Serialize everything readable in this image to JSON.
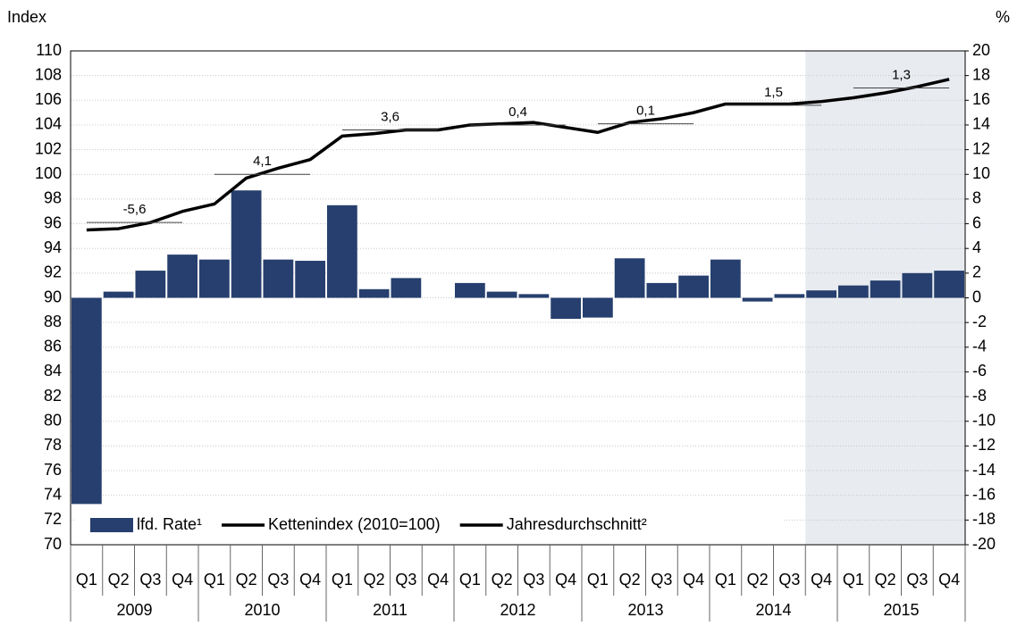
{
  "chart_data": {
    "type": "bar_line",
    "y_axis_label": "Index",
    "y2_axis_label": "%",
    "categories": [
      "Q1",
      "Q2",
      "Q3",
      "Q4",
      "Q1",
      "Q2",
      "Q3",
      "Q4",
      "Q1",
      "Q2",
      "Q3",
      "Q4",
      "Q1",
      "Q2",
      "Q3",
      "Q4",
      "Q1",
      "Q2",
      "Q3",
      "Q4",
      "Q1",
      "Q2",
      "Q3",
      "Q4",
      "Q1",
      "Q2",
      "Q3",
      "Q4"
    ],
    "years": [
      "2009",
      "2010",
      "2011",
      "2012",
      "2013",
      "2014",
      "2015"
    ],
    "ylim": [
      70,
      110
    ],
    "yticks": [
      70,
      72,
      74,
      76,
      78,
      80,
      82,
      84,
      86,
      88,
      90,
      92,
      94,
      96,
      98,
      100,
      102,
      104,
      106,
      108,
      110
    ],
    "y2lim": [
      -20,
      20
    ],
    "y2ticks": [
      -20,
      -18,
      -16,
      -14,
      -12,
      -10,
      -8,
      -6,
      -4,
      -2,
      0,
      2,
      4,
      6,
      8,
      10,
      12,
      14,
      16,
      18,
      20
    ],
    "grid": true,
    "shade_start": 23,
    "series": [
      {
        "name": "lfd. Rate¹",
        "color": "#263f6e",
        "axis": "y2",
        "kind": "bar",
        "values": [
          -16.7,
          0.5,
          2.2,
          3.5,
          3.1,
          8.7,
          3.1,
          3.0,
          7.5,
          0.7,
          1.6,
          0,
          1.2,
          0.5,
          0.3,
          -1.7,
          -1.6,
          3.2,
          1.2,
          1.8,
          3.1,
          -0.3,
          0.3,
          0.6,
          1.0,
          1.4,
          2.0,
          2.2
        ]
      },
      {
        "name": "Kettenindex (2010=100)",
        "color": "#000000",
        "kind": "line",
        "values": [
          95.5,
          95.6,
          96.1,
          97.0,
          97.6,
          99.7,
          100.5,
          101.2,
          103.1,
          103.3,
          103.6,
          103.6,
          104.0,
          104.1,
          104.2,
          103.8,
          103.4,
          104.2,
          104.5,
          105.0,
          105.7,
          105.7,
          105.7,
          105.9,
          106.2,
          106.6,
          107.1,
          107.7
        ]
      }
    ],
    "annual_average": {
      "name": "Jahresdurchschnitt²",
      "color": "#444444",
      "values": [
        96.1,
        100.0,
        103.6,
        104.0,
        104.1,
        105.6,
        107.0
      ],
      "annotations": [
        "-5,6",
        "4,1",
        "3,6",
        "0,4",
        "0,1",
        "1,5",
        "1,3"
      ]
    }
  }
}
